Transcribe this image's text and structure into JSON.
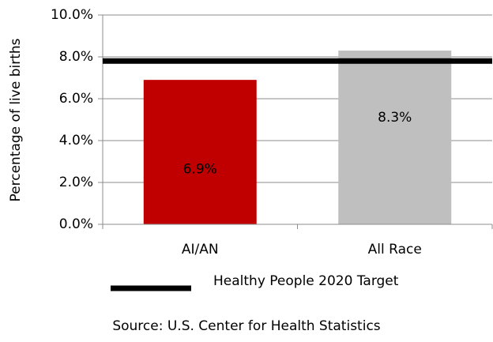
{
  "chart_data": {
    "type": "bar",
    "categories": [
      "AI/AN",
      "All Race"
    ],
    "values": [
      6.9,
      8.3
    ],
    "value_labels": [
      "6.9%",
      "8.3%"
    ],
    "colors": [
      "#c00000",
      "#bfbfbf"
    ],
    "ylabel": "Percentage of live births",
    "ylim": [
      0,
      10
    ],
    "yticks": [
      {
        "value": 0,
        "label": "0.0%"
      },
      {
        "value": 2,
        "label": "2.0%"
      },
      {
        "value": 4,
        "label": "4.0%"
      },
      {
        "value": 6,
        "label": "6.0%"
      },
      {
        "value": 8,
        "label": "8.0%"
      },
      {
        "value": 10,
        "label": "10.0%"
      }
    ],
    "grid": true,
    "target": {
      "name": "Healthy People 2020 Target",
      "value": 7.8,
      "color": "#000000"
    },
    "source": "Source: U.S. Center for Health Statistics"
  }
}
